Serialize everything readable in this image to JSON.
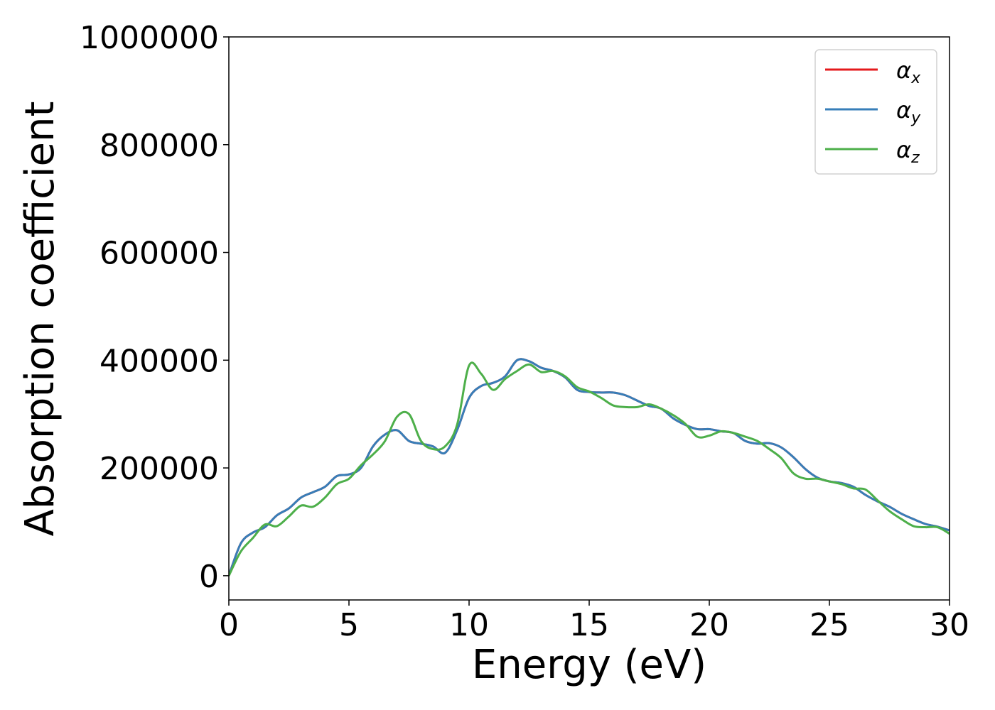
{
  "chart_data": {
    "type": "line",
    "title": "",
    "xlabel": "Energy (eV)",
    "ylabel": "Absorption coefficient",
    "xlim": [
      0,
      30
    ],
    "ylim": [
      -45000,
      1000000
    ],
    "xticks": [
      0,
      5,
      10,
      15,
      20,
      25,
      30
    ],
    "xtick_labels": [
      "0",
      "5",
      "10",
      "15",
      "20",
      "25",
      "30"
    ],
    "yticks": [
      0,
      200000,
      400000,
      600000,
      800000,
      1000000
    ],
    "ytick_labels": [
      "0",
      "200000",
      "400000",
      "600000",
      "800000",
      "1000000"
    ],
    "grid": false,
    "legend_position": "top-right",
    "x": [
      0,
      0.5,
      1,
      1.5,
      2,
      2.5,
      3,
      3.5,
      4,
      4.5,
      5,
      5.5,
      6,
      6.5,
      7,
      7.5,
      8,
      8.5,
      9,
      9.5,
      10,
      10.5,
      11,
      11.5,
      12,
      12.5,
      13,
      13.5,
      14,
      14.5,
      15,
      15.5,
      16,
      16.5,
      17,
      17.5,
      18,
      18.5,
      19,
      19.5,
      20,
      20.5,
      21,
      21.5,
      22,
      22.5,
      23,
      23.5,
      24,
      24.5,
      25,
      25.5,
      26,
      26.5,
      27,
      27.5,
      28,
      28.5,
      29,
      29.5,
      30
    ],
    "series": [
      {
        "name": "α_x",
        "legend_base": "α",
        "legend_sub": "x",
        "color": "#e41a1c",
        "values": [
          0,
          60000,
          80000,
          90000,
          112000,
          125000,
          145000,
          155000,
          165000,
          185000,
          188000,
          200000,
          240000,
          262000,
          270000,
          250000,
          245000,
          240000,
          228000,
          270000,
          330000,
          352000,
          358000,
          370000,
          400000,
          398000,
          386000,
          380000,
          368000,
          345000,
          341000,
          340000,
          340000,
          335000,
          325000,
          315000,
          310000,
          292000,
          280000,
          272000,
          272000,
          268000,
          265000,
          250000,
          245000,
          246000,
          238000,
          220000,
          198000,
          182000,
          175000,
          172000,
          165000,
          150000,
          138000,
          128000,
          115000,
          105000,
          96000,
          91000,
          84000
        ]
      },
      {
        "name": "α_y",
        "legend_base": "α",
        "legend_sub": "y",
        "color": "#377eb8",
        "values": [
          0,
          60000,
          80000,
          90000,
          112000,
          125000,
          145000,
          155000,
          165000,
          185000,
          188000,
          200000,
          240000,
          262000,
          270000,
          250000,
          245000,
          240000,
          228000,
          270000,
          330000,
          352000,
          358000,
          370000,
          400000,
          398000,
          386000,
          380000,
          368000,
          345000,
          341000,
          340000,
          340000,
          335000,
          325000,
          315000,
          310000,
          292000,
          280000,
          272000,
          272000,
          268000,
          265000,
          250000,
          245000,
          246000,
          238000,
          220000,
          198000,
          182000,
          175000,
          172000,
          165000,
          150000,
          138000,
          128000,
          115000,
          105000,
          96000,
          91000,
          84000
        ]
      },
      {
        "name": "α_z",
        "legend_base": "α",
        "legend_sub": "z",
        "color": "#4daf4a",
        "values": [
          0,
          45000,
          70000,
          95000,
          92000,
          110000,
          130000,
          128000,
          145000,
          170000,
          180000,
          205000,
          225000,
          250000,
          295000,
          300000,
          250000,
          235000,
          240000,
          280000,
          390000,
          375000,
          345000,
          365000,
          380000,
          392000,
          378000,
          380000,
          370000,
          350000,
          342000,
          330000,
          316000,
          313000,
          313000,
          318000,
          310000,
          298000,
          282000,
          258000,
          260000,
          268000,
          265000,
          258000,
          250000,
          235000,
          218000,
          190000,
          180000,
          180000,
          175000,
          170000,
          162000,
          160000,
          140000,
          120000,
          105000,
          92000,
          90000,
          90000,
          78000
        ]
      }
    ]
  }
}
